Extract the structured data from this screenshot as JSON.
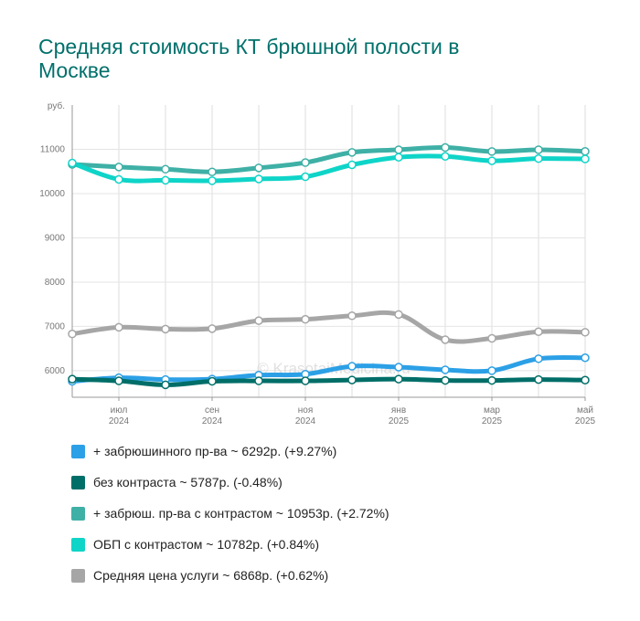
{
  "title": "Средняя стоимость КТ брюшной полости в Москве",
  "watermark": "© KrasotaiMedicina.ru",
  "chart_data": {
    "type": "line",
    "title": "Средняя стоимость КТ брюшной полости в Москве",
    "ylabel": "руб.",
    "ylim": [
      5400,
      12000
    ],
    "yticks": [
      6000,
      7000,
      8000,
      9000,
      10000,
      11000
    ],
    "grid": true,
    "legend_position": "bottom",
    "x_tick_labels": [
      {
        "index": 1,
        "month": "июл",
        "year": "2024"
      },
      {
        "index": 3,
        "month": "сен",
        "year": "2024"
      },
      {
        "index": 5,
        "month": "ноя",
        "year": "2024"
      },
      {
        "index": 7,
        "month": "янв",
        "year": "2025"
      },
      {
        "index": 9,
        "month": "мар",
        "year": "2025"
      },
      {
        "index": 11,
        "month": "май",
        "year": "2025"
      }
    ],
    "series": [
      {
        "name": "+ забрюшинного пр-ва",
        "color": "#2ca0e6",
        "values": [
          5760,
          5840,
          5800,
          5810,
          5900,
          5920,
          6100,
          6080,
          6020,
          6000,
          6270,
          6292
        ]
      },
      {
        "name": "без контраста",
        "color": "#006e68",
        "values": [
          5810,
          5770,
          5680,
          5760,
          5770,
          5770,
          5790,
          5810,
          5780,
          5780,
          5800,
          5787
        ]
      },
      {
        "name": "+ забрюш. пр-ва с контрастом",
        "color": "#3fb0a6",
        "values": [
          10660,
          10600,
          10550,
          10490,
          10580,
          10700,
          10930,
          10990,
          11040,
          10950,
          10990,
          10953
        ]
      },
      {
        "name": "ОБП с контрастом",
        "color": "#0fd4c8",
        "values": [
          10690,
          10320,
          10300,
          10290,
          10330,
          10380,
          10650,
          10820,
          10840,
          10740,
          10790,
          10782
        ]
      },
      {
        "name": "Средняя цена услуги",
        "color": "#a6a6a6",
        "values": [
          6830,
          6980,
          6940,
          6950,
          7130,
          7160,
          7240,
          7270,
          6700,
          6730,
          6880,
          6868
        ]
      }
    ]
  },
  "legend": [
    {
      "label": "+ забрюшинного пр-ва ~ 6292р. (+9.27%)",
      "color": "#2ca0e6"
    },
    {
      "label": "без контраста ~ 5787р. (-0.48%)",
      "color": "#006e68"
    },
    {
      "label": "+ забрюш. пр-ва с контрастом ~ 10953р. (+2.72%)",
      "color": "#3fb0a6"
    },
    {
      "label": "ОБП с контрастом ~ 10782р. (+0.84%)",
      "color": "#0fd4c8"
    },
    {
      "label": "Средняя цена услуги ~ 6868р. (+0.62%)",
      "color": "#a6a6a6"
    }
  ]
}
